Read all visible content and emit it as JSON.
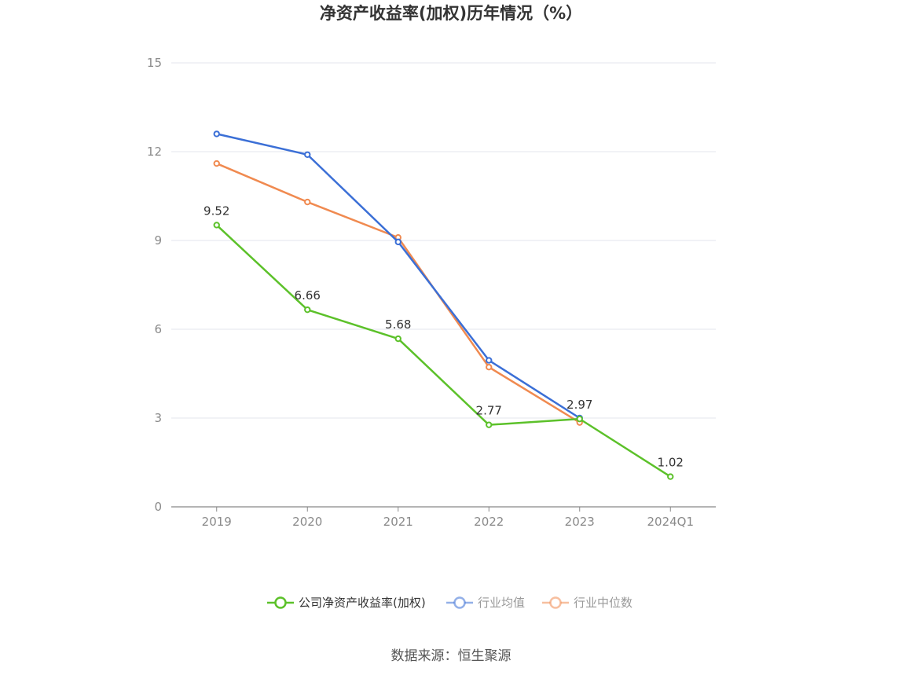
{
  "chart_data": {
    "type": "line",
    "title": "净资产收益率(加权)历年情况（%）",
    "categories": [
      "2019",
      "2020",
      "2021",
      "2022",
      "2023",
      "2024Q1"
    ],
    "yticks": [
      0,
      3,
      6,
      9,
      12,
      15
    ],
    "ylim": [
      0,
      15
    ],
    "grid": true,
    "legend_position": "bottom",
    "series": [
      {
        "name": "公司净资产收益率(加权)",
        "color": "#5cc12a",
        "values": [
          9.52,
          6.66,
          5.68,
          2.77,
          2.97,
          1.02
        ],
        "labels": [
          "9.52",
          "6.66",
          "5.68",
          "2.77",
          "2.97",
          "1.02"
        ]
      },
      {
        "name": "行业均值",
        "color": "#3b6fd6",
        "values": [
          12.6,
          11.9,
          8.95,
          4.95,
          3.0,
          null
        ]
      },
      {
        "name": "行业中位数",
        "color": "#f08a50",
        "values": [
          11.6,
          10.3,
          9.1,
          4.72,
          2.85,
          null
        ]
      }
    ],
    "source": "数据来源：恒生聚源"
  }
}
